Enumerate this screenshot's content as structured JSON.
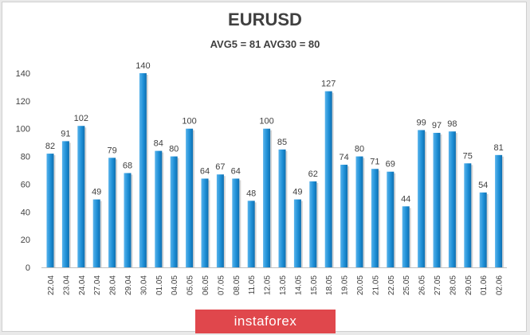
{
  "chart_data": {
    "type": "bar",
    "title": "EURUSD",
    "subtitle": "AVG5 = 81 AVG30 = 80",
    "categories": [
      "22.04",
      "23.04",
      "24.04",
      "27.04",
      "28.04",
      "29.04",
      "30.04",
      "01.05",
      "04.05",
      "05.05",
      "06.05",
      "07.05",
      "08.05",
      "11.05",
      "12.05",
      "13.05",
      "14.05",
      "15.05",
      "18.05",
      "19.05",
      "20.05",
      "21.05",
      "22.05",
      "25.05",
      "26.05",
      "27.05",
      "28.05",
      "29.05",
      "01.06",
      "02.06"
    ],
    "values": [
      82,
      91,
      102,
      49,
      79,
      68,
      140,
      84,
      80,
      100,
      64,
      67,
      64,
      48,
      100,
      85,
      49,
      62,
      127,
      74,
      80,
      71,
      69,
      44,
      99,
      97,
      98,
      75,
      54,
      81
    ],
    "y_ticks": [
      "0",
      "20",
      "40",
      "60",
      "80",
      "100",
      "120",
      "140"
    ],
    "ylim": [
      0,
      140
    ],
    "grid": false,
    "bar_color": "#1e8fd6"
  },
  "watermark": {
    "text": "instaforex",
    "color": "#e0474c"
  }
}
